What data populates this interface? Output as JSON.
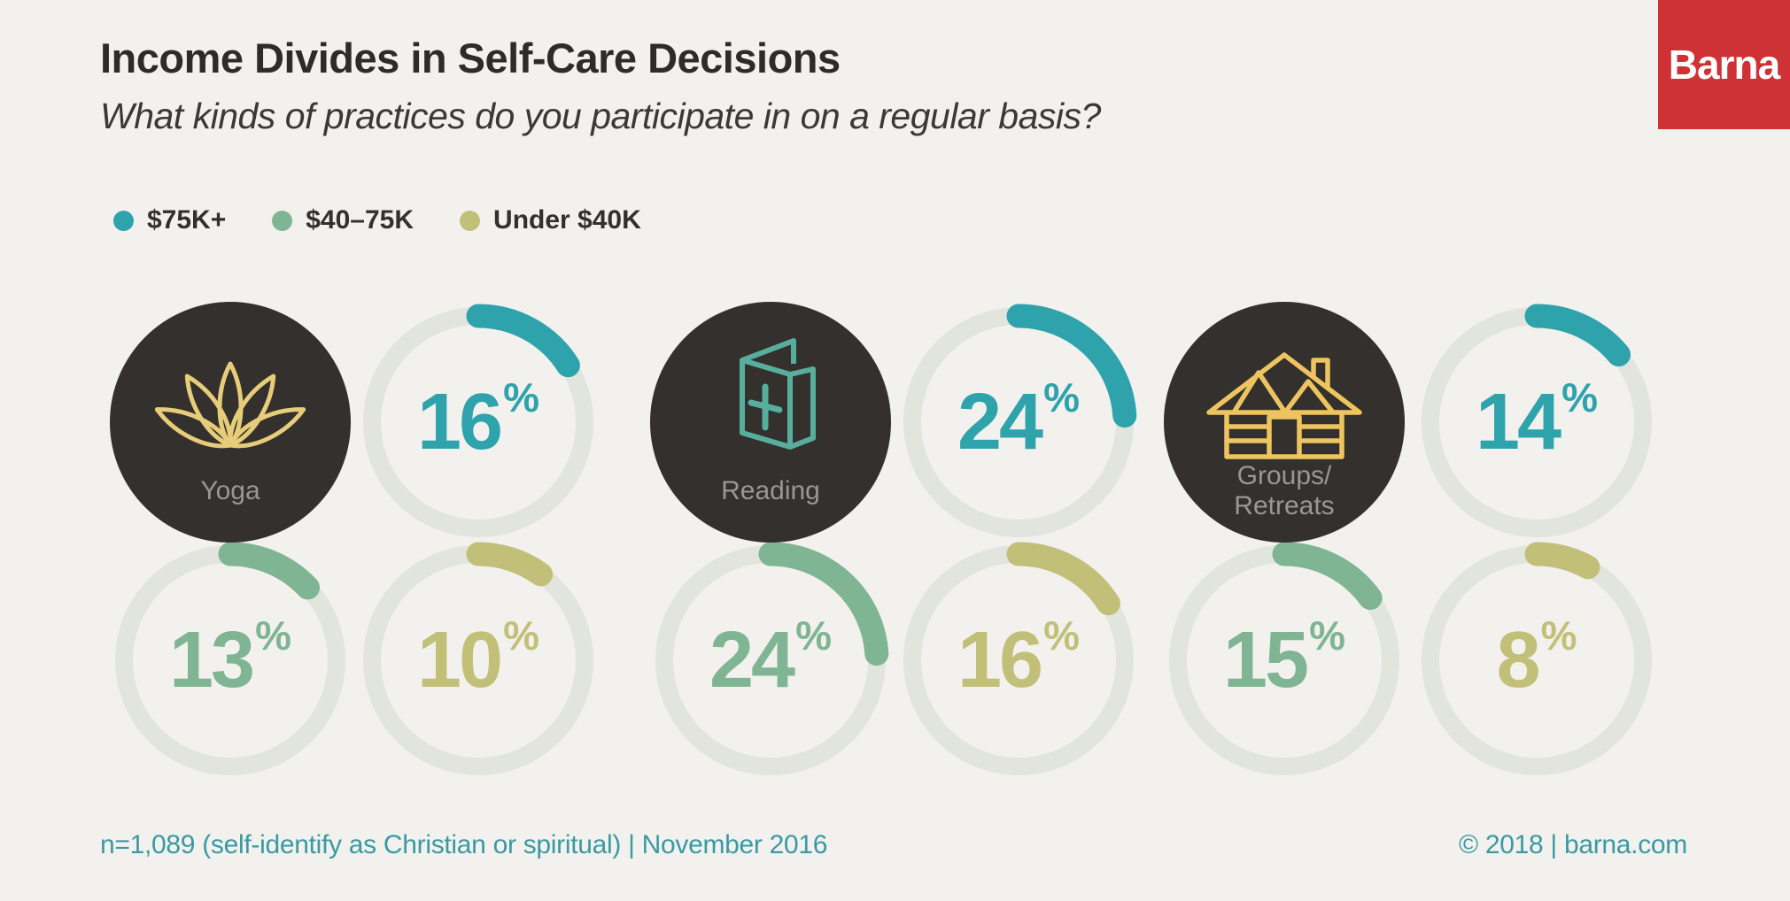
{
  "header": {
    "title": "Income Divides in Self-Care Decisions",
    "subtitle": "What kinds of practices do you participate in on a regular basis?",
    "logo_text": "Barna"
  },
  "footer": {
    "left": "n=1,089 (self-identify as Christian or spiritual) | November 2016",
    "right": "© 2018 | barna.com"
  },
  "colors": {
    "background": "#f2f1ee",
    "ring_track": "#e2e4de",
    "icon_circle": "#33302d",
    "icon_label": "#979795",
    "title_text": "#2d2c2a",
    "footer_text": "#3a9aa3",
    "logo_red": "#cf3235",
    "logo_text": "#ffffff"
  },
  "chart_data": {
    "type": "donut",
    "unit": "%",
    "title": "Income Divides in Self-Care Decisions",
    "question": "What kinds of practices do you participate in on a regular basis?",
    "legend_position": "top-left",
    "arc_start": "top",
    "direction": "clockwise",
    "series": [
      {
        "name": "$75K+",
        "color": "#2ea3ac"
      },
      {
        "name": "$40–75K",
        "color": "#7fb593"
      },
      {
        "name": "Under $40K",
        "color": "#c2c078"
      }
    ],
    "groups": [
      {
        "category": "Yoga",
        "label_lines": [
          "Yoga"
        ],
        "icon": "lotus-icon",
        "icon_color": "#e7cc79",
        "values": [
          16,
          13,
          10
        ]
      },
      {
        "category": "Reading",
        "label_lines": [
          "Reading"
        ],
        "icon": "bible-booklet-icon",
        "icon_color": "#58ae9d",
        "values": [
          24,
          24,
          16
        ]
      },
      {
        "category": "Groups/Retreats",
        "label_lines": [
          "Groups/",
          "Retreats"
        ],
        "icon": "cabin-icon",
        "icon_color": "#edc45f",
        "values": [
          14,
          15,
          8
        ]
      }
    ]
  }
}
